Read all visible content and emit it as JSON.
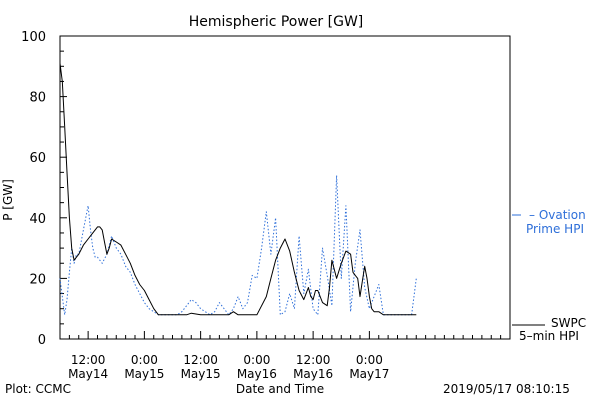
{
  "chart_data": {
    "type": "line",
    "title": "Hemispheric Power [GW]",
    "ylabel": "P [GW]",
    "xlabel": "Date and Time",
    "ylim": [
      0,
      100
    ],
    "yticks": [
      0,
      20,
      40,
      60,
      80,
      100
    ],
    "xlim": [
      0,
      96
    ],
    "x_unit": "hours since 2019-05-14 06:00 UT",
    "xticks": [
      {
        "x": 6,
        "time": "12:00",
        "date": "May14"
      },
      {
        "x": 18,
        "time": "0:00",
        "date": "May15"
      },
      {
        "x": 30,
        "time": "12:00",
        "date": "May15"
      },
      {
        "x": 42,
        "time": "0:00",
        "date": "May16"
      },
      {
        "x": 54,
        "time": "12:00",
        "date": "May16"
      },
      {
        "x": 66,
        "time": "0:00",
        "date": "May17"
      }
    ],
    "grid": false,
    "legend_placement": "right",
    "plot_label": "Plot: CCMC",
    "timestamp": "2019/05/17 08:10:15",
    "series": [
      {
        "name": "SWPC 5-min HPI",
        "legend_lines": [
          "SWPC",
          "5–min HPI"
        ],
        "style": "solid",
        "color": "#000000",
        "x": [
          0,
          0.5,
          1,
          1.5,
          2,
          2.5,
          3,
          3.5,
          4,
          5,
          6,
          7,
          8,
          8.5,
          9,
          9.5,
          10,
          10.5,
          11,
          12,
          13,
          14,
          15,
          16,
          17,
          18,
          19,
          20,
          21,
          22,
          23,
          24,
          25,
          26,
          27,
          28,
          30,
          32,
          34,
          36,
          37,
          38,
          40,
          42,
          44,
          45,
          46,
          47,
          48,
          49,
          50,
          51,
          52,
          52.5,
          53,
          53.5,
          54,
          54.5,
          55,
          56,
          57,
          57.5,
          58,
          59,
          60,
          61,
          62,
          62.5,
          63,
          63.5,
          64,
          64.5,
          65,
          65.5,
          66,
          66.5,
          67,
          67.5,
          68,
          69,
          70,
          71,
          72,
          74,
          76
        ],
        "y": [
          91,
          85,
          70,
          55,
          40,
          30,
          26,
          27,
          28,
          31,
          33,
          35,
          37,
          37,
          36,
          32,
          28,
          30,
          33,
          32,
          31,
          28,
          25,
          21,
          18,
          16,
          13,
          10,
          8,
          8,
          8,
          8,
          8,
          8,
          8,
          8.5,
          8,
          8,
          8,
          8,
          9,
          8,
          8,
          8,
          14,
          20,
          26,
          30,
          33,
          29,
          22,
          16,
          13,
          15,
          17,
          14,
          13,
          16,
          16,
          12,
          11,
          17,
          26,
          20,
          25,
          29,
          28,
          22,
          21,
          20,
          14,
          19,
          24,
          20,
          14,
          10,
          9,
          9,
          9,
          8,
          8,
          8,
          8,
          8,
          8
        ]
      },
      {
        "name": "Ovation Prime HPI",
        "legend_lines": [
          "– Ovation",
          "Prime HPI"
        ],
        "style": "dotted",
        "color": "#2e6fd9",
        "x": [
          0,
          0.5,
          1,
          1.5,
          2,
          2.5,
          3,
          3.5,
          4,
          5,
          6,
          6.5,
          7,
          7.5,
          8,
          9,
          10,
          11,
          12,
          13,
          14,
          15,
          16,
          17,
          18,
          19,
          20,
          21,
          22,
          23,
          24,
          25,
          26,
          27,
          28,
          29,
          30,
          31,
          32,
          33,
          34,
          35,
          36,
          37,
          38,
          39,
          40,
          41,
          42,
          43,
          44,
          45,
          46,
          47,
          48,
          49,
          50,
          51,
          52,
          53,
          54,
          55,
          56,
          57,
          58,
          59,
          60,
          61,
          62,
          63,
          64,
          65,
          66,
          67,
          68,
          69,
          70,
          71,
          72,
          73,
          74,
          75,
          76
        ],
        "y": [
          20,
          14,
          8,
          13,
          22,
          30,
          25,
          28,
          28,
          36,
          44,
          36,
          30,
          27,
          27,
          25,
          28,
          34,
          30,
          28,
          24,
          22,
          18,
          15,
          12,
          10,
          9,
          8,
          8,
          8,
          8,
          8,
          9,
          11,
          13,
          12,
          10,
          9,
          8,
          9,
          12,
          10,
          8,
          10,
          14,
          10,
          12,
          21,
          20,
          30,
          42,
          28,
          40,
          8,
          9,
          15,
          10,
          34,
          15,
          23,
          10,
          8,
          30,
          21,
          11,
          54,
          20,
          44,
          9,
          25,
          36,
          17,
          10,
          14,
          18,
          8,
          8,
          8,
          8,
          8,
          8,
          8,
          20
        ]
      }
    ]
  }
}
